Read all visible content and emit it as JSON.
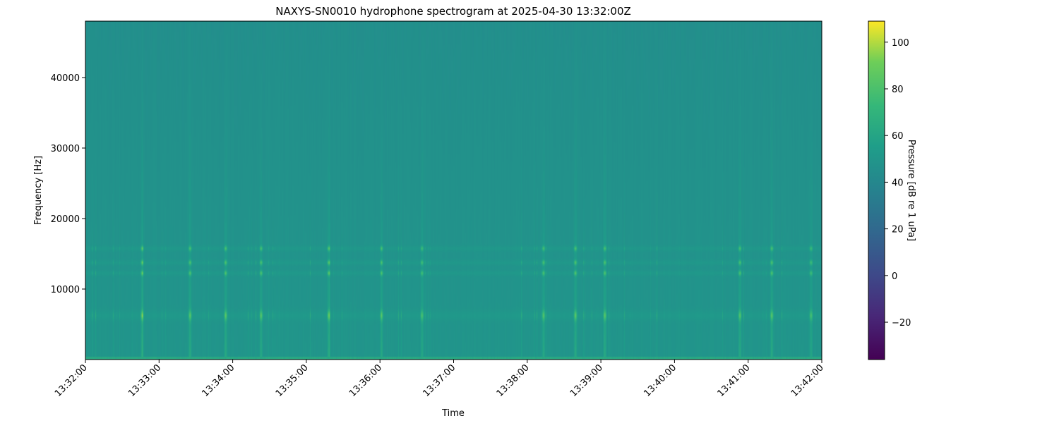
{
  "chart_data": {
    "type": "heatmap",
    "title": "NAXYS-SN0010 hydrophone spectrogram at 2025-04-30 13:32:00Z",
    "xlabel": "Time",
    "ylabel": "Frequency [Hz]",
    "x_ticks": [
      "13:32:00",
      "13:33:00",
      "13:34:00",
      "13:35:00",
      "13:36:00",
      "13:37:00",
      "13:38:00",
      "13:39:00",
      "13:40:00",
      "13:41:00",
      "13:42:00"
    ],
    "xlim": [
      "13:32:00",
      "13:42:00"
    ],
    "y_ticks": [
      10000,
      20000,
      30000,
      40000
    ],
    "ylim": [
      0,
      48000
    ],
    "colorbar": {
      "label": "Pressure [dB re 1 uPa]",
      "colormap": "viridis",
      "range": [
        -36,
        109
      ],
      "ticks": [
        -20,
        0,
        20,
        40,
        60,
        80,
        100
      ]
    },
    "background_level_db": 45,
    "low_frequency_band": {
      "freq_max_hz": 500,
      "level_db": 62
    },
    "tonal_bands_hz": [
      6300,
      12300,
      13800,
      15800
    ],
    "transient_events": [
      {
        "time": "13:32:46",
        "peak_db": 75
      },
      {
        "time": "13:33:25",
        "peak_db": 73
      },
      {
        "time": "13:33:54",
        "peak_db": 74
      },
      {
        "time": "13:34:23",
        "peak_db": 70
      },
      {
        "time": "13:35:18",
        "peak_db": 74
      },
      {
        "time": "13:36:01",
        "peak_db": 73
      },
      {
        "time": "13:36:34",
        "peak_db": 70
      },
      {
        "time": "13:38:13",
        "peak_db": 73
      },
      {
        "time": "13:38:39",
        "peak_db": 75
      },
      {
        "time": "13:39:03",
        "peak_db": 74
      },
      {
        "time": "13:40:53",
        "peak_db": 73
      },
      {
        "time": "13:41:19",
        "peak_db": 74
      },
      {
        "time": "13:41:51",
        "peak_db": 70
      }
    ]
  }
}
